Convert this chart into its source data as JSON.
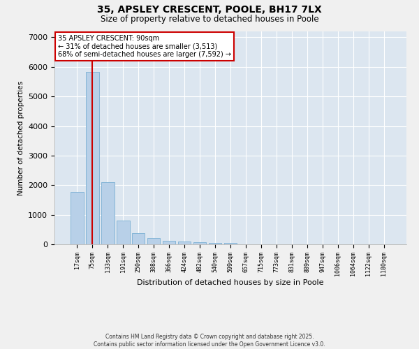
{
  "title": "35, APSLEY CRESCENT, POOLE, BH17 7LX",
  "subtitle": "Size of property relative to detached houses in Poole",
  "xlabel": "Distribution of detached houses by size in Poole",
  "ylabel": "Number of detached properties",
  "categories": [
    "17sqm",
    "75sqm",
    "133sqm",
    "191sqm",
    "250sqm",
    "308sqm",
    "366sqm",
    "424sqm",
    "482sqm",
    "540sqm",
    "599sqm",
    "657sqm",
    "715sqm",
    "773sqm",
    "831sqm",
    "889sqm",
    "947sqm",
    "1006sqm",
    "1064sqm",
    "1122sqm",
    "1180sqm"
  ],
  "values": [
    1780,
    5820,
    2090,
    810,
    370,
    210,
    115,
    90,
    80,
    55,
    40,
    0,
    0,
    0,
    0,
    0,
    0,
    0,
    0,
    0,
    0
  ],
  "bar_color": "#b8d0e8",
  "bar_edge_color": "#7bafd4",
  "vline_x_index": 1,
  "vline_color": "#cc0000",
  "annotation_line1": "35 APSLEY CRESCENT: 90sqm",
  "annotation_line2": "← 31% of detached houses are smaller (3,513)",
  "annotation_line3": "68% of semi-detached houses are larger (7,592) →",
  "ylim": [
    0,
    7200
  ],
  "yticks": [
    0,
    1000,
    2000,
    3000,
    4000,
    5000,
    6000,
    7000
  ],
  "plot_bg_color": "#dce6f0",
  "fig_bg_color": "#f0f0f0",
  "grid_color": "#ffffff",
  "annotation_box_color": "#cc0000",
  "footer_line1": "Contains HM Land Registry data © Crown copyright and database right 2025.",
  "footer_line2": "Contains public sector information licensed under the Open Government Licence v3.0."
}
